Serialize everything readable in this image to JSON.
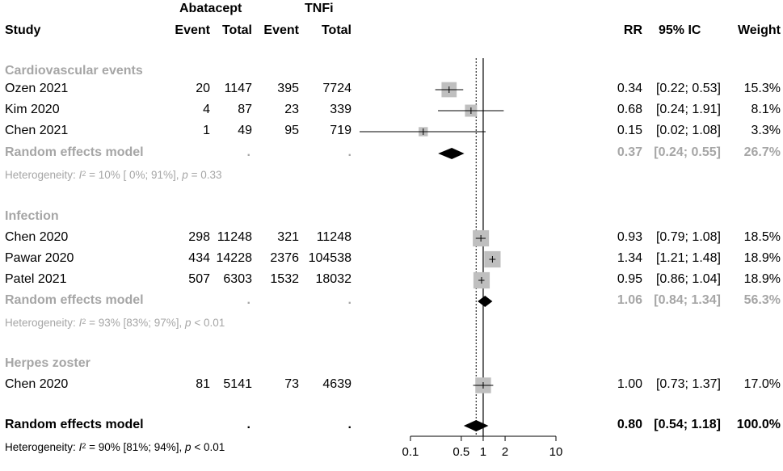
{
  "chart_data": {
    "type": "forest",
    "scale": "log",
    "xlim": [
      0.1,
      10
    ],
    "x_ticks": [
      "0.1",
      "0.5",
      "1",
      "2",
      "10"
    ],
    "x_tick_values": [
      0.1,
      0.5,
      1,
      2,
      10
    ],
    "reference_line": 1,
    "overall_dashed_line": 0.8,
    "header": {
      "group1": "Abatacept",
      "group2": "TNFi",
      "study": "Study",
      "event1": "Event",
      "total1": "Total",
      "event2": "Event",
      "total2": "Total",
      "rr": "RR",
      "ci": "95% IC",
      "weight": "Weight"
    },
    "groups": [
      {
        "name": "Cardiovascular events",
        "studies": [
          {
            "study": "Ozen 2021",
            "e1": "20",
            "t1": "1147",
            "e2": "395",
            "t2": "7724",
            "rr": 0.34,
            "lo": 0.22,
            "hi": 0.53,
            "rr_text": "0.34",
            "ci_text": "[0.22; 0.53]",
            "w_text": "15.3%",
            "w": 15.3
          },
          {
            "study": "Kim 2020",
            "e1": "4",
            "t1": "87",
            "e2": "23",
            "t2": "339",
            "rr": 0.68,
            "lo": 0.24,
            "hi": 1.91,
            "rr_text": "0.68",
            "ci_text": "[0.24; 1.91]",
            "w_text": "8.1%",
            "w": 8.1
          },
          {
            "study": "Chen 2021",
            "e1": "1",
            "t1": "49",
            "e2": "95",
            "t2": "719",
            "rr": 0.15,
            "lo": 0.02,
            "hi": 1.08,
            "rr_text": "0.15",
            "ci_text": "[0.02; 1.08]",
            "w_text": "3.3%",
            "w": 3.3
          }
        ],
        "model": {
          "label": "Random effects model",
          "e": ".",
          "t": ".",
          "rr": 0.37,
          "lo": 0.24,
          "hi": 0.55,
          "rr_text": "0.37",
          "ci_text": "[0.24; 0.55]",
          "w_text": "26.7%"
        },
        "heterogeneity": {
          "prefix": "Heterogeneity: ",
          "i": "I",
          "sup": "2",
          "rest": " = 10% [ 0%; 91%], ",
          "p": "p",
          "p_rest": " = 0.33"
        }
      },
      {
        "name": "Infection",
        "studies": [
          {
            "study": "Chen 2020",
            "e1": "298",
            "t1": "11248",
            "e2": "321",
            "t2": "11248",
            "rr": 0.93,
            "lo": 0.79,
            "hi": 1.08,
            "rr_text": "0.93",
            "ci_text": "[0.79; 1.08]",
            "w_text": "18.5%",
            "w": 18.5
          },
          {
            "study": "Pawar 2020",
            "e1": "434",
            "t1": "14228",
            "e2": "2376",
            "t2": "104538",
            "rr": 1.34,
            "lo": 1.21,
            "hi": 1.48,
            "rr_text": "1.34",
            "ci_text": "[1.21; 1.48]",
            "w_text": "18.9%",
            "w": 18.9
          },
          {
            "study": "Patel 2021",
            "e1": "507",
            "t1": "6303",
            "e2": "1532",
            "t2": "18032",
            "rr": 0.95,
            "lo": 0.86,
            "hi": 1.04,
            "rr_text": "0.95",
            "ci_text": "[0.86; 1.04]",
            "w_text": "18.9%",
            "w": 18.9
          }
        ],
        "model": {
          "label": "Random effects model",
          "e": ".",
          "t": ".",
          "rr": 1.06,
          "lo": 0.84,
          "hi": 1.34,
          "rr_text": "1.06",
          "ci_text": "[0.84; 1.34]",
          "w_text": "56.3%"
        },
        "heterogeneity": {
          "prefix": "Heterogeneity: ",
          "i": "I",
          "sup": "2",
          "rest": " = 93% [83%; 97%], ",
          "p": "p",
          "p_rest": " < 0.01"
        }
      },
      {
        "name": "Herpes zoster",
        "studies": [
          {
            "study": "Chen 2020",
            "e1": "81",
            "t1": "5141",
            "e2": "73",
            "t2": "4639",
            "rr": 1.0,
            "lo": 0.73,
            "hi": 1.37,
            "rr_text": "1.00",
            "ci_text": "[0.73; 1.37]",
            "w_text": "17.0%",
            "w": 17.0
          }
        ]
      }
    ],
    "overall": {
      "label": "Random effects model",
      "e": ".",
      "t": ".",
      "rr": 0.8,
      "lo": 0.54,
      "hi": 1.18,
      "rr_text": "0.80",
      "ci_text": "[0.54; 1.18]",
      "w_text": "100.0%",
      "heterogeneity": {
        "prefix": "Heterogeneity: ",
        "i": "I",
        "sup": "2",
        "rest": " = 90% [81%; 94%], ",
        "p": "p",
        "p_rest": " < 0.01"
      }
    }
  }
}
